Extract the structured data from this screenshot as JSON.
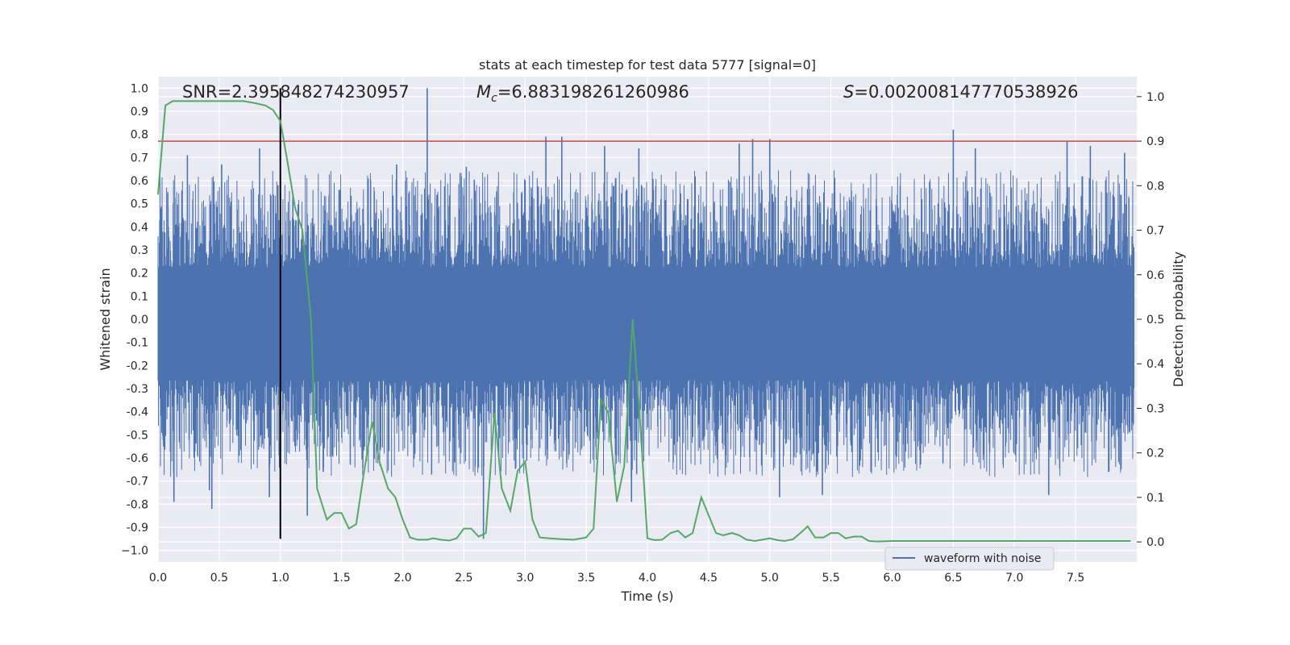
{
  "chart_data": {
    "type": "line",
    "title": "stats at each timestep for test data 5777 [signal=0]",
    "xlabel": "Time (s)",
    "ylabel_left": "Whitened strain",
    "ylabel_right": "Detection probability",
    "xlim": [
      0.0,
      8.0
    ],
    "ylim_left": [
      -1.05,
      1.05
    ],
    "ylim_right": [
      -0.045,
      1.045
    ],
    "x_ticks": [
      "0.0",
      "0.5",
      "1.0",
      "1.5",
      "2.0",
      "2.5",
      "3.0",
      "3.5",
      "4.0",
      "4.5",
      "5.0",
      "5.5",
      "6.0",
      "6.5",
      "7.0",
      "7.5"
    ],
    "y_ticks_left": [
      "1.0",
      "0.9",
      "0.8",
      "0.7",
      "0.6",
      "0.5",
      "0.4",
      "0.3",
      "0.2",
      "0.1",
      "0.0",
      "-0.1",
      "-0.2",
      "-0.3",
      "-0.4",
      "-0.5",
      "-0.6",
      "-0.7",
      "-0.8",
      "-0.9",
      "−1.0"
    ],
    "y_ticks_right": [
      "1.0",
      "0.9",
      "0.8",
      "0.7",
      "0.6",
      "0.5",
      "0.4",
      "0.3",
      "0.2",
      "0.1",
      "0.0"
    ],
    "grid": true,
    "legend_position": "lower-center",
    "annotations": {
      "snr": "SNR=2.395848274230957",
      "mc_label": "M",
      "mc_sub": "c",
      "mc_value": "=6.883198261260986",
      "s_label": "S",
      "s_value": "=0.002008147770538926"
    },
    "threshold_line": {
      "y": 0.9,
      "axis": "right",
      "color": "#c44e52"
    },
    "vertical_line": {
      "x": 1.0,
      "y_from": -0.95,
      "y_to": 1.0,
      "color": "#000000"
    },
    "series": [
      {
        "name": "waveform with noise",
        "color": "#4c72b0",
        "axis": "left",
        "style": "dense-noise",
        "envelope": {
          "upper_typical": 0.3,
          "lower_typical": -0.35,
          "max": 1.0,
          "min": -0.95
        },
        "spikes": [
          {
            "x": 0.08,
            "y": 0.55
          },
          {
            "x": 0.13,
            "y": -0.79
          },
          {
            "x": 0.24,
            "y": 0.71
          },
          {
            "x": 0.42,
            "y": -0.74
          },
          {
            "x": 0.44,
            "y": -0.82
          },
          {
            "x": 0.52,
            "y": 0.67
          },
          {
            "x": 0.83,
            "y": 0.74
          },
          {
            "x": 0.91,
            "y": -0.77
          },
          {
            "x": 0.98,
            "y": 0.58
          },
          {
            "x": 1.22,
            "y": -0.85
          },
          {
            "x": 1.35,
            "y": -0.66
          },
          {
            "x": 1.48,
            "y": 0.56
          },
          {
            "x": 1.95,
            "y": 0.67
          },
          {
            "x": 2.2,
            "y": 1.0
          },
          {
            "x": 2.52,
            "y": 0.66
          },
          {
            "x": 2.66,
            "y": -0.95
          },
          {
            "x": 3.17,
            "y": 0.79
          },
          {
            "x": 3.3,
            "y": 0.79
          },
          {
            "x": 3.65,
            "y": 0.75
          },
          {
            "x": 3.87,
            "y": -0.79
          },
          {
            "x": 3.93,
            "y": 0.74
          },
          {
            "x": 4.75,
            "y": 0.76
          },
          {
            "x": 4.86,
            "y": 0.78
          },
          {
            "x": 5.0,
            "y": 0.78
          },
          {
            "x": 5.08,
            "y": -0.77
          },
          {
            "x": 5.43,
            "y": -0.76
          },
          {
            "x": 6.5,
            "y": 0.82
          },
          {
            "x": 6.68,
            "y": 0.74
          },
          {
            "x": 7.28,
            "y": -0.76
          },
          {
            "x": 7.43,
            "y": 0.77
          },
          {
            "x": 7.62,
            "y": 0.75
          },
          {
            "x": 7.9,
            "y": 0.72
          }
        ]
      },
      {
        "name": "detection probability",
        "color": "#55a868",
        "axis": "right",
        "x": [
          0.0,
          0.06,
          0.12,
          0.2,
          0.4,
          0.6,
          0.7,
          0.8,
          0.88,
          0.94,
          1.0,
          1.06,
          1.12,
          1.18,
          1.25,
          1.3,
          1.38,
          1.44,
          1.5,
          1.56,
          1.62,
          1.68,
          1.75,
          1.81,
          1.88,
          1.94,
          2.0,
          2.06,
          2.12,
          2.2,
          2.25,
          2.31,
          2.38,
          2.44,
          2.5,
          2.56,
          2.62,
          2.68,
          2.75,
          2.81,
          2.88,
          2.94,
          3.0,
          3.06,
          3.12,
          3.2,
          3.3,
          3.4,
          3.5,
          3.56,
          3.62,
          3.68,
          3.75,
          3.81,
          3.88,
          3.94,
          4.0,
          4.06,
          4.12,
          4.19,
          4.25,
          4.31,
          4.37,
          4.44,
          4.5,
          4.56,
          4.62,
          4.69,
          4.75,
          4.81,
          4.88,
          4.94,
          5.0,
          5.06,
          5.12,
          5.19,
          5.25,
          5.31,
          5.37,
          5.44,
          5.5,
          5.56,
          5.62,
          5.69,
          5.75,
          5.81,
          5.88,
          6.0,
          6.2,
          6.4,
          6.6,
          6.8,
          7.0,
          7.2,
          7.4,
          7.6,
          7.8,
          7.95
        ],
        "y": [
          0.78,
          0.98,
          0.99,
          0.99,
          0.99,
          0.99,
          0.99,
          0.985,
          0.98,
          0.97,
          0.945,
          0.85,
          0.75,
          0.7,
          0.5,
          0.12,
          0.05,
          0.065,
          0.065,
          0.03,
          0.04,
          0.15,
          0.27,
          0.18,
          0.12,
          0.1,
          0.05,
          0.01,
          0.005,
          0.005,
          0.008,
          0.005,
          0.003,
          0.008,
          0.03,
          0.03,
          0.012,
          0.02,
          0.29,
          0.12,
          0.07,
          0.16,
          0.18,
          0.05,
          0.01,
          0.008,
          0.006,
          0.005,
          0.01,
          0.03,
          0.32,
          0.29,
          0.09,
          0.17,
          0.5,
          0.27,
          0.008,
          0.004,
          0.005,
          0.02,
          0.025,
          0.01,
          0.02,
          0.1,
          0.06,
          0.02,
          0.015,
          0.02,
          0.015,
          0.005,
          0.002,
          0.005,
          0.008,
          0.004,
          0.002,
          0.006,
          0.02,
          0.035,
          0.01,
          0.01,
          0.02,
          0.02,
          0.008,
          0.012,
          0.012,
          0.002,
          0.001,
          0.002,
          0.002,
          0.002,
          0.002,
          0.002,
          0.002,
          0.002,
          0.002,
          0.002,
          0.002,
          0.002
        ]
      }
    ]
  }
}
